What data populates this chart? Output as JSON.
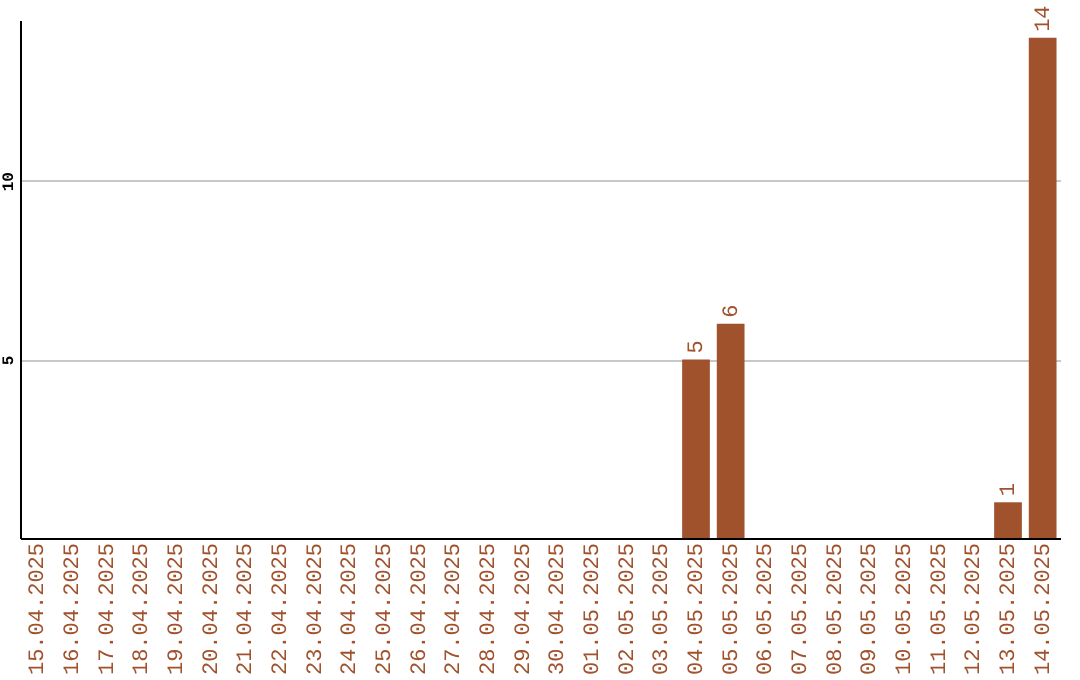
{
  "chart_data": {
    "type": "bar",
    "categories": [
      "15.04.2025",
      "16.04.2025",
      "17.04.2025",
      "18.04.2025",
      "19.04.2025",
      "20.04.2025",
      "21.04.2025",
      "22.04.2025",
      "23.04.2025",
      "24.04.2025",
      "25.04.2025",
      "26.04.2025",
      "27.04.2025",
      "28.04.2025",
      "29.04.2025",
      "30.04.2025",
      "01.05.2025",
      "02.05.2025",
      "03.05.2025",
      "04.05.2025",
      "05.05.2025",
      "06.05.2025",
      "07.05.2025",
      "08.05.2025",
      "09.05.2025",
      "10.05.2025",
      "11.05.2025",
      "12.05.2025",
      "13.05.2025",
      "14.05.2025"
    ],
    "values": [
      0,
      0,
      0,
      0,
      0,
      0,
      0,
      0,
      0,
      0,
      0,
      0,
      0,
      0,
      0,
      0,
      0,
      0,
      0,
      5,
      6,
      0,
      0,
      0,
      0,
      0,
      0,
      0,
      1,
      14
    ],
    "value_labels": [
      null,
      null,
      null,
      null,
      null,
      null,
      null,
      null,
      null,
      null,
      null,
      null,
      null,
      null,
      null,
      null,
      null,
      null,
      null,
      "5",
      "6",
      null,
      null,
      null,
      null,
      null,
      null,
      null,
      "1",
      "14"
    ],
    "color": "#a0522d",
    "ylim": [
      0,
      14.5
    ],
    "yticks": [
      5,
      10
    ],
    "grid": "y"
  }
}
